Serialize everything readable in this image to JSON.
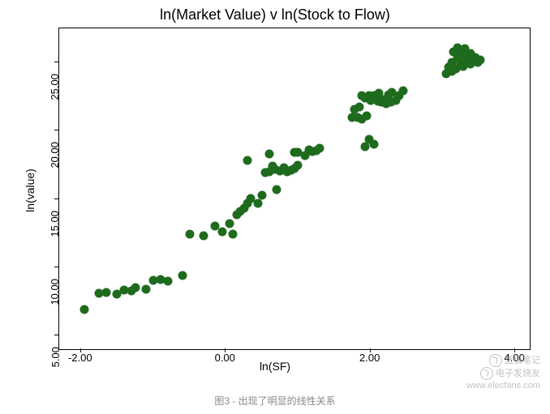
{
  "chart": {
    "type": "scatter",
    "title": "ln(Market Value) v ln(Stock to Flow)",
    "xlabel": "ln(SF)",
    "ylabel": "ln(value)",
    "xlim": [
      -2.3,
      4.2
    ],
    "ylim": [
      4.0,
      27.5
    ],
    "xticks": [
      -2.0,
      0.0,
      2.0,
      4.0
    ],
    "yticks": [
      5.0,
      10.0,
      15.0,
      20.0,
      25.0
    ],
    "xtick_labels": [
      "-2.00",
      "0.00",
      "2.00",
      "4.00"
    ],
    "ytick_labels": [
      "5.00",
      "10.00",
      "15.00",
      "20.00",
      "25.00"
    ],
    "plot_bg": "#ffffff",
    "border_color": "#000000",
    "point_color": "#1e6b1e",
    "point_radius": 5.5,
    "title_fontsize": 18,
    "label_fontsize": 14,
    "tick_fontsize": 13,
    "points": [
      [
        -1.95,
        6.9
      ],
      [
        -1.75,
        8.1
      ],
      [
        -1.65,
        8.15
      ],
      [
        -1.5,
        8.05
      ],
      [
        -1.4,
        8.35
      ],
      [
        -1.3,
        8.3
      ],
      [
        -1.25,
        8.5
      ],
      [
        -1.1,
        8.4
      ],
      [
        -1.0,
        9.05
      ],
      [
        -0.9,
        9.1
      ],
      [
        -0.8,
        9.0
      ],
      [
        -0.6,
        9.4
      ],
      [
        -0.5,
        12.4
      ],
      [
        -0.3,
        12.3
      ],
      [
        -0.15,
        13.0
      ],
      [
        -0.05,
        12.6
      ],
      [
        0.05,
        13.2
      ],
      [
        0.1,
        12.45
      ],
      [
        0.15,
        13.85
      ],
      [
        0.2,
        14.1
      ],
      [
        0.25,
        14.3
      ],
      [
        0.3,
        14.7
      ],
      [
        0.3,
        17.85
      ],
      [
        0.35,
        15.05
      ],
      [
        0.45,
        14.7
      ],
      [
        0.5,
        15.25
      ],
      [
        0.55,
        16.95
      ],
      [
        0.6,
        17.0
      ],
      [
        0.6,
        18.3
      ],
      [
        0.65,
        17.4
      ],
      [
        0.68,
        17.2
      ],
      [
        0.7,
        15.7
      ],
      [
        0.75,
        17.05
      ],
      [
        0.8,
        17.3
      ],
      [
        0.85,
        17.0
      ],
      [
        0.9,
        17.1
      ],
      [
        0.95,
        17.25
      ],
      [
        0.95,
        18.4
      ],
      [
        1.0,
        18.45
      ],
      [
        1.0,
        17.5
      ],
      [
        1.1,
        18.2
      ],
      [
        1.15,
        18.6
      ],
      [
        1.2,
        18.5
      ],
      [
        1.25,
        18.55
      ],
      [
        1.3,
        18.7
      ],
      [
        1.75,
        20.95
      ],
      [
        1.78,
        21.55
      ],
      [
        1.82,
        21.0
      ],
      [
        1.85,
        21.75
      ],
      [
        1.88,
        20.85
      ],
      [
        1.88,
        22.55
      ],
      [
        1.92,
        22.4
      ],
      [
        1.93,
        18.85
      ],
      [
        1.95,
        21.1
      ],
      [
        1.98,
        19.35
      ],
      [
        1.98,
        22.6
      ],
      [
        2.0,
        22.2
      ],
      [
        2.05,
        19.0
      ],
      [
        2.05,
        22.6
      ],
      [
        2.1,
        22.15
      ],
      [
        2.12,
        22.75
      ],
      [
        2.15,
        22.1
      ],
      [
        2.18,
        22.25
      ],
      [
        2.22,
        22.0
      ],
      [
        2.25,
        22.65
      ],
      [
        2.28,
        22.1
      ],
      [
        2.3,
        22.8
      ],
      [
        2.35,
        22.2
      ],
      [
        2.4,
        22.55
      ],
      [
        2.45,
        22.95
      ],
      [
        3.05,
        24.2
      ],
      [
        3.08,
        24.65
      ],
      [
        3.12,
        25.0
      ],
      [
        3.12,
        24.35
      ],
      [
        3.15,
        25.75
      ],
      [
        3.18,
        24.55
      ],
      [
        3.2,
        25.3
      ],
      [
        3.2,
        26.1
      ],
      [
        3.25,
        24.95
      ],
      [
        3.25,
        25.55
      ],
      [
        3.28,
        24.7
      ],
      [
        3.3,
        26.0
      ],
      [
        3.32,
        25.4
      ],
      [
        3.35,
        25.0
      ],
      [
        3.38,
        24.9
      ],
      [
        3.38,
        25.65
      ],
      [
        3.42,
        25.1
      ],
      [
        3.45,
        25.35
      ],
      [
        3.48,
        25.0
      ],
      [
        3.52,
        25.2
      ]
    ]
  },
  "caption": "图3 - 出现了明显的线性关系",
  "watermark": {
    "line1": "蓝狐笔记",
    "line2": "电子发烧友",
    "line3": "www.elecfans.com"
  }
}
